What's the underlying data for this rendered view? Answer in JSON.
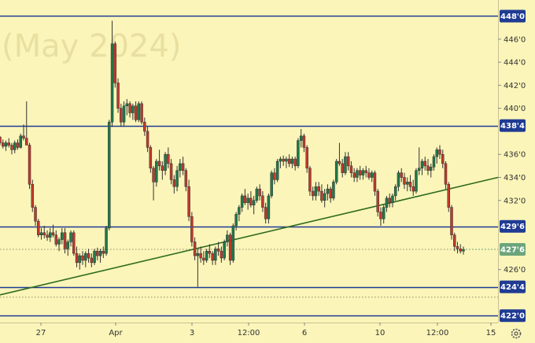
{
  "watermark": "(May 2024)",
  "chart_data": {
    "type": "candlestick",
    "ylim": [
      421.4,
      449.4
    ],
    "y_ticks": [
      {
        "value": 446.0,
        "label": "446'0"
      },
      {
        "value": 444.0,
        "label": "444'0"
      },
      {
        "value": 442.0,
        "label": "442'0"
      },
      {
        "value": 440.0,
        "label": "440'0"
      },
      {
        "value": 436.0,
        "label": "436'0"
      },
      {
        "value": 434.0,
        "label": "434'0"
      },
      {
        "value": 432.0,
        "label": "432'0"
      },
      {
        "value": 426.0,
        "label": "426'0"
      }
    ],
    "x_ticks": [
      "27",
      "Apr",
      "3",
      "12:00",
      "6",
      "10",
      "12:00",
      "15"
    ],
    "horizontal_levels": [
      {
        "value": 448.0,
        "label": "448'0"
      },
      {
        "value": 438.5,
        "label": "438'4"
      },
      {
        "value": 429.75,
        "label": "429'6"
      },
      {
        "value": 424.5,
        "label": "424'4"
      },
      {
        "value": 422.0,
        "label": "422'0"
      }
    ],
    "dotted_levels": [
      427.75,
      423.6
    ],
    "trendline": {
      "start": 423.8,
      "end": 434.0
    },
    "last_price": {
      "value": 427.75,
      "label": "427'6"
    },
    "colors": {
      "up": "#1f7a4a",
      "down": "#c0392b",
      "level": "#1f3b93",
      "trend": "#2f6b1f",
      "last": "#6ca57c"
    },
    "candles": [
      [
        437.5,
        437.6,
        436.8,
        437.0
      ],
      [
        437.0,
        437.3,
        436.5,
        436.7
      ],
      [
        436.7,
        437.2,
        436.3,
        437.0
      ],
      [
        437.0,
        437.4,
        436.6,
        436.8
      ],
      [
        436.8,
        437.0,
        436.0,
        436.4
      ],
      [
        436.4,
        437.2,
        436.1,
        437.0
      ],
      [
        437.0,
        437.3,
        436.4,
        436.6
      ],
      [
        436.6,
        437.8,
        436.5,
        437.6
      ],
      [
        437.6,
        438.6,
        437.2,
        437.4
      ],
      [
        437.4,
        440.6,
        437.0,
        436.8
      ],
      [
        436.8,
        437.0,
        433.0,
        433.4
      ],
      [
        433.4,
        433.8,
        431.0,
        431.4
      ],
      [
        431.4,
        431.6,
        429.8,
        430.2
      ],
      [
        430.2,
        430.4,
        428.8,
        429.0
      ],
      [
        429.0,
        429.6,
        428.6,
        429.2
      ],
      [
        429.2,
        429.8,
        428.7,
        429.0
      ],
      [
        429.0,
        429.4,
        428.5,
        428.8
      ],
      [
        428.8,
        429.6,
        428.4,
        429.2
      ],
      [
        429.2,
        429.9,
        428.8,
        429.0
      ],
      [
        429.0,
        429.4,
        428.0,
        428.2
      ],
      [
        428.2,
        428.8,
        427.6,
        428.6
      ],
      [
        428.6,
        429.6,
        428.2,
        429.2
      ],
      [
        429.2,
        429.6,
        427.4,
        427.8
      ],
      [
        427.8,
        428.6,
        427.2,
        428.4
      ],
      [
        428.4,
        429.4,
        428.0,
        429.2
      ],
      [
        429.2,
        429.4,
        427.2,
        427.4
      ],
      [
        427.4,
        428.0,
        426.2,
        426.6
      ],
      [
        426.6,
        427.4,
        426.0,
        427.2
      ],
      [
        427.2,
        427.6,
        426.4,
        426.8
      ],
      [
        426.8,
        427.6,
        426.2,
        427.4
      ],
      [
        427.4,
        427.8,
        426.6,
        427.0
      ],
      [
        427.0,
        427.4,
        426.2,
        426.6
      ],
      [
        426.6,
        427.8,
        426.4,
        427.6
      ],
      [
        427.6,
        427.9,
        426.8,
        427.2
      ],
      [
        427.2,
        427.8,
        426.6,
        427.6
      ],
      [
        427.6,
        428.0,
        427.0,
        427.4
      ],
      [
        427.4,
        429.8,
        427.2,
        429.6
      ],
      [
        429.6,
        439.0,
        429.4,
        438.8
      ],
      [
        438.8,
        447.6,
        438.4,
        445.6
      ],
      [
        445.6,
        445.8,
        441.8,
        442.2
      ],
      [
        442.2,
        442.6,
        439.6,
        440.0
      ],
      [
        440.0,
        440.4,
        438.4,
        438.8
      ],
      [
        438.8,
        440.6,
        438.4,
        440.2
      ],
      [
        440.2,
        440.8,
        439.4,
        440.4
      ],
      [
        440.4,
        440.6,
        439.2,
        439.6
      ],
      [
        439.6,
        440.4,
        439.0,
        440.2
      ],
      [
        440.2,
        440.6,
        438.8,
        439.0
      ],
      [
        439.0,
        440.6,
        438.8,
        440.4
      ],
      [
        440.4,
        440.6,
        438.6,
        438.8
      ],
      [
        438.8,
        439.2,
        437.6,
        438.0
      ],
      [
        438.0,
        438.4,
        436.2,
        436.6
      ],
      [
        436.6,
        436.8,
        434.4,
        434.8
      ],
      [
        434.8,
        435.0,
        432.0,
        433.6
      ],
      [
        433.6,
        435.6,
        433.2,
        435.4
      ],
      [
        435.4,
        436.4,
        434.6,
        435.0
      ],
      [
        435.0,
        435.4,
        433.8,
        434.6
      ],
      [
        434.6,
        436.2,
        434.2,
        436.0
      ],
      [
        436.0,
        436.6,
        434.8,
        435.2
      ],
      [
        435.2,
        435.6,
        433.4,
        433.8
      ],
      [
        433.8,
        434.2,
        432.6,
        433.2
      ],
      [
        433.2,
        435.0,
        432.8,
        434.6
      ],
      [
        434.6,
        435.6,
        434.0,
        435.2
      ],
      [
        435.2,
        435.8,
        434.2,
        434.6
      ],
      [
        434.6,
        434.8,
        432.8,
        433.2
      ],
      [
        433.2,
        433.8,
        430.2,
        430.6
      ],
      [
        430.6,
        431.0,
        428.0,
        428.4
      ],
      [
        428.4,
        428.8,
        426.8,
        427.2
      ],
      [
        427.2,
        427.8,
        424.5,
        427.4
      ],
      [
        427.4,
        428.0,
        426.6,
        427.0
      ],
      [
        427.0,
        427.6,
        426.4,
        426.8
      ],
      [
        426.8,
        427.8,
        426.6,
        427.6
      ],
      [
        427.6,
        428.2,
        427.0,
        427.4
      ],
      [
        427.4,
        427.6,
        426.4,
        426.8
      ],
      [
        426.8,
        428.0,
        426.4,
        427.8
      ],
      [
        427.8,
        428.4,
        427.2,
        427.6
      ],
      [
        427.6,
        428.0,
        426.6,
        427.0
      ],
      [
        427.0,
        428.6,
        426.8,
        428.4
      ],
      [
        428.4,
        429.4,
        428.0,
        429.0
      ],
      [
        429.0,
        429.2,
        426.4,
        426.8
      ],
      [
        426.8,
        430.0,
        426.6,
        429.8
      ],
      [
        429.8,
        431.0,
        429.4,
        430.8
      ],
      [
        430.8,
        431.6,
        430.2,
        431.4
      ],
      [
        431.4,
        432.6,
        431.0,
        432.4
      ],
      [
        432.4,
        433.0,
        431.6,
        431.8
      ],
      [
        431.8,
        432.6,
        431.2,
        432.2
      ],
      [
        432.2,
        432.8,
        431.4,
        431.6
      ],
      [
        431.6,
        432.4,
        430.8,
        432.0
      ],
      [
        432.0,
        433.2,
        431.8,
        433.0
      ],
      [
        433.0,
        433.4,
        432.0,
        432.4
      ],
      [
        432.4,
        432.8,
        431.0,
        431.4
      ],
      [
        431.4,
        431.8,
        430.0,
        430.4
      ],
      [
        430.4,
        432.6,
        430.0,
        432.4
      ],
      [
        432.4,
        434.6,
        432.2,
        434.4
      ],
      [
        434.4,
        434.8,
        433.4,
        433.8
      ],
      [
        433.8,
        435.6,
        433.6,
        435.4
      ],
      [
        435.4,
        435.8,
        434.8,
        435.6
      ],
      [
        435.6,
        435.9,
        435.0,
        435.4
      ],
      [
        435.4,
        435.8,
        434.8,
        435.6
      ],
      [
        435.6,
        436.0,
        434.9,
        435.2
      ],
      [
        435.2,
        435.8,
        434.8,
        435.6
      ],
      [
        435.6,
        435.8,
        434.6,
        435.0
      ],
      [
        435.0,
        437.4,
        434.8,
        437.2
      ],
      [
        437.2,
        438.2,
        436.6,
        437.6
      ],
      [
        437.6,
        437.8,
        436.2,
        436.6
      ],
      [
        436.6,
        436.8,
        434.4,
        434.8
      ],
      [
        434.8,
        435.0,
        432.4,
        432.8
      ],
      [
        432.8,
        433.2,
        432.0,
        432.4
      ],
      [
        432.4,
        433.6,
        432.0,
        433.2
      ],
      [
        433.2,
        433.6,
        432.4,
        432.8
      ],
      [
        432.8,
        433.4,
        431.8,
        432.0
      ],
      [
        432.0,
        433.0,
        431.4,
        432.6
      ],
      [
        432.6,
        433.4,
        432.0,
        433.0
      ],
      [
        433.0,
        433.2,
        431.8,
        432.2
      ],
      [
        432.2,
        433.8,
        432.0,
        433.6
      ],
      [
        433.6,
        435.6,
        433.4,
        435.4
      ],
      [
        435.4,
        437.0,
        435.0,
        435.2
      ],
      [
        435.2,
        435.6,
        434.0,
        434.4
      ],
      [
        434.4,
        436.2,
        434.2,
        435.8
      ],
      [
        435.8,
        436.2,
        434.6,
        435.0
      ],
      [
        435.0,
        435.4,
        434.0,
        434.4
      ],
      [
        434.4,
        434.8,
        433.6,
        434.0
      ],
      [
        434.0,
        434.8,
        433.6,
        434.6
      ],
      [
        434.6,
        435.0,
        433.8,
        434.2
      ],
      [
        434.2,
        434.8,
        433.8,
        434.6
      ],
      [
        434.6,
        435.0,
        434.0,
        434.4
      ],
      [
        434.4,
        434.8,
        433.8,
        434.0
      ],
      [
        434.0,
        434.6,
        433.6,
        434.4
      ],
      [
        434.4,
        434.6,
        432.4,
        432.8
      ],
      [
        432.8,
        433.0,
        430.6,
        431.0
      ],
      [
        431.0,
        431.4,
        429.8,
        430.4
      ],
      [
        430.4,
        431.6,
        430.0,
        431.4
      ],
      [
        431.4,
        432.4,
        431.0,
        432.2
      ],
      [
        432.2,
        432.6,
        431.4,
        431.8
      ],
      [
        431.8,
        432.6,
        431.4,
        432.4
      ],
      [
        432.4,
        433.4,
        432.0,
        433.2
      ],
      [
        433.2,
        434.6,
        432.8,
        434.4
      ],
      [
        434.4,
        434.8,
        433.6,
        434.0
      ],
      [
        434.0,
        434.4,
        433.0,
        433.4
      ],
      [
        433.4,
        434.0,
        432.8,
        433.6
      ],
      [
        433.6,
        434.2,
        432.8,
        433.2
      ],
      [
        433.2,
        433.8,
        432.4,
        432.8
      ],
      [
        432.8,
        434.8,
        432.6,
        434.6
      ],
      [
        434.6,
        436.6,
        434.2,
        434.8
      ],
      [
        434.8,
        435.6,
        434.2,
        435.4
      ],
      [
        435.4,
        435.8,
        434.6,
        435.0
      ],
      [
        435.0,
        435.6,
        434.2,
        434.6
      ],
      [
        434.6,
        435.2,
        434.0,
        434.9
      ],
      [
        434.9,
        436.0,
        434.6,
        435.8
      ],
      [
        435.8,
        436.6,
        435.2,
        436.4
      ],
      [
        436.4,
        436.8,
        435.6,
        436.0
      ],
      [
        436.0,
        436.4,
        434.8,
        435.2
      ],
      [
        435.2,
        435.4,
        433.0,
        433.4
      ],
      [
        433.4,
        433.6,
        431.0,
        431.4
      ],
      [
        431.4,
        431.6,
        428.6,
        429.0
      ],
      [
        429.0,
        429.2,
        427.6,
        428.0
      ],
      [
        428.0,
        428.4,
        427.4,
        427.8
      ],
      [
        427.8,
        428.2,
        427.4,
        427.6
      ],
      [
        427.6,
        428.0,
        427.3,
        427.75
      ]
    ]
  }
}
